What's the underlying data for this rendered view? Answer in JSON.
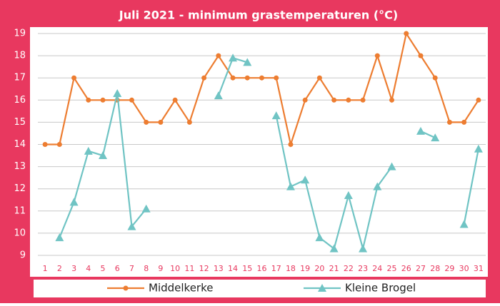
{
  "chart_data": {
    "type": "line",
    "title": "Juli 2021 - minimum grastemperaturen (°C)",
    "categories": [
      "1",
      "2",
      "3",
      "4",
      "5",
      "6",
      "7",
      "8",
      "9",
      "10",
      "11",
      "12",
      "13",
      "14",
      "15",
      "16",
      "17",
      "18",
      "19",
      "20",
      "21",
      "22",
      "23",
      "24",
      "25",
      "26",
      "27",
      "28",
      "29",
      "30",
      "31"
    ],
    "series": [
      {
        "name": "Middelkerke",
        "color": "#ed7d31",
        "marker": "circle",
        "values": [
          14,
          14,
          17,
          16,
          16,
          16,
          16,
          15,
          15,
          16,
          15,
          17,
          18,
          17,
          17,
          17,
          17,
          14,
          16,
          17,
          16,
          16,
          16,
          18,
          16,
          19,
          18,
          17,
          15,
          15,
          16
        ]
      },
      {
        "name": "Kleine Brogel",
        "color": "#70c4c4",
        "marker": "triangle",
        "values": [
          null,
          9.8,
          11.4,
          13.7,
          13.5,
          16.3,
          10.3,
          11.1,
          null,
          null,
          null,
          null,
          16.2,
          17.9,
          17.7,
          null,
          15.3,
          12.1,
          12.4,
          9.8,
          9.3,
          11.7,
          9.3,
          12.1,
          13.0,
          null,
          14.6,
          14.3,
          null,
          10.4,
          13.8
        ]
      }
    ],
    "ylim": [
      9,
      19
    ],
    "yticks": [
      9,
      10,
      11,
      12,
      13,
      14,
      15,
      16,
      17,
      18,
      19
    ],
    "grid": true,
    "legend": "bottom"
  }
}
